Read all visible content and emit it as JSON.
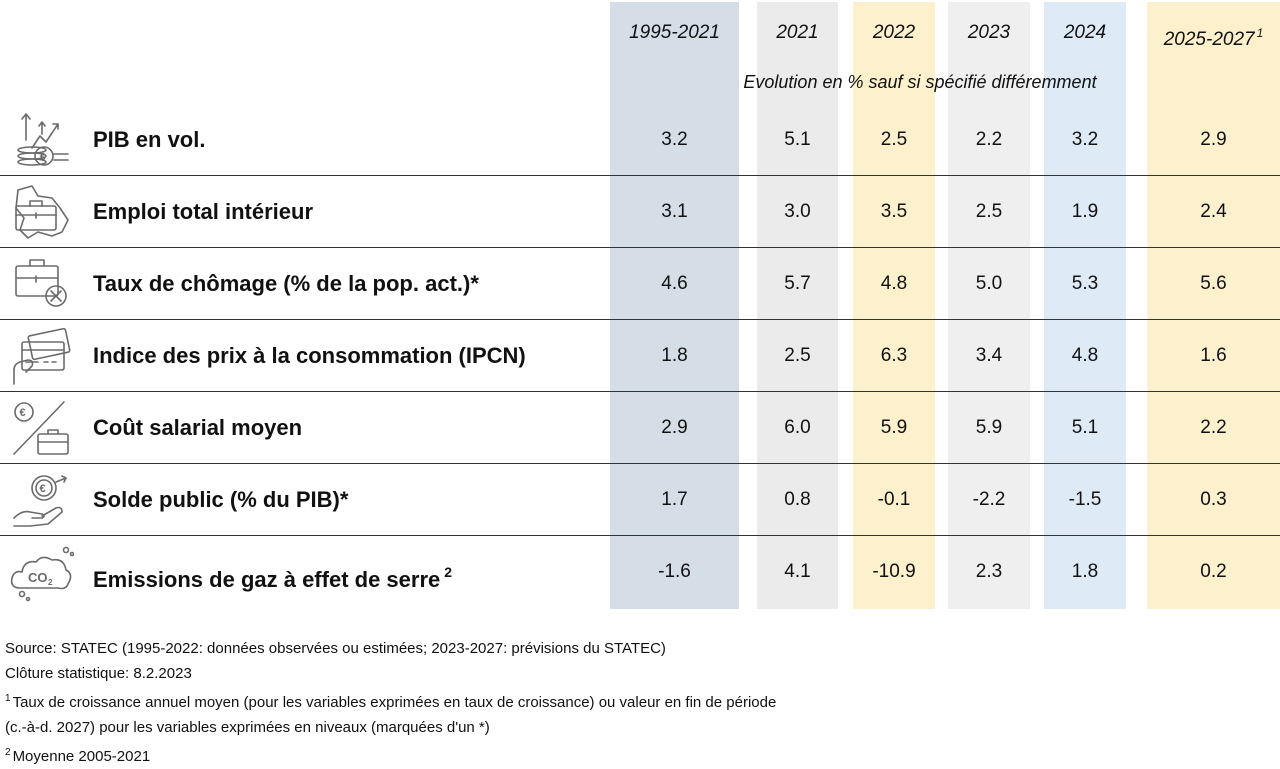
{
  "chart_data": {
    "type": "table",
    "unit_note": "Evolution en % sauf si spécifié différemment",
    "columns": [
      {
        "label": "1995-2021",
        "sup": "",
        "bg": "#d5dde6"
      },
      {
        "label": "2021",
        "sup": "",
        "bg": "#ebebeb"
      },
      {
        "label": "2022",
        "sup": "",
        "bg": "#fcf1cc"
      },
      {
        "label": "2023",
        "sup": "",
        "bg": "#efefef"
      },
      {
        "label": "2024",
        "sup": "",
        "bg": "#deebf7"
      },
      {
        "label": "2025-2027",
        "sup": "1",
        "bg": "#fcf1cc"
      }
    ],
    "rows": [
      {
        "label": "PIB en vol.",
        "sup": "",
        "icon": "gdp-growth-icon",
        "values": [
          "3.2",
          "5.1",
          "2.5",
          "2.2",
          "3.2",
          "2.9"
        ]
      },
      {
        "label": "Emploi total intérieur",
        "sup": "",
        "icon": "briefcase-map-icon",
        "values": [
          "3.1",
          "3.0",
          "3.5",
          "2.5",
          "1.9",
          "2.4"
        ]
      },
      {
        "label": "Taux de chômage (% de la pop. act.)*",
        "sup": "",
        "icon": "unemployment-icon",
        "values": [
          "4.6",
          "5.7",
          "4.8",
          "5.0",
          "5.3",
          "5.6"
        ]
      },
      {
        "label": "Indice des prix à la consommation (IPCN)",
        "sup": "",
        "icon": "credit-card-icon",
        "values": [
          "1.8",
          "2.5",
          "6.3",
          "3.4",
          "4.8",
          "1.6"
        ]
      },
      {
        "label": "Coût salarial moyen",
        "sup": "",
        "icon": "euro-briefcase-icon",
        "values": [
          "2.9",
          "6.0",
          "5.9",
          "5.9",
          "5.1",
          "2.2"
        ]
      },
      {
        "label": "Solde public (% du PIB)*",
        "sup": "",
        "icon": "euro-hand-icon",
        "values": [
          "1.7",
          "0.8",
          "-0.1",
          "-2.2",
          "-1.5",
          "0.3"
        ]
      },
      {
        "label": "Emissions de gaz à effet de serre",
        "sup": "2",
        "icon": "co2-cloud-icon",
        "values": [
          "-1.6",
          "4.1",
          "-10.9",
          "2.3",
          "1.8",
          "0.2"
        ]
      }
    ]
  },
  "icon_text": {
    "euro": "€",
    "co2": "CO",
    "co2_sub": "2"
  },
  "footer": {
    "source": "Source: STATEC (1995-2022: données observées ou estimées; 2023-2027: prévisions du STATEC)",
    "cloture": "Clôture statistique: 8.2.2023",
    "note1_sup": "1",
    "note1_line1": "Taux de croissance annuel moyen (pour les variables exprimées en taux de croissance) ou valeur en fin de période",
    "note1_line2": "(c.-à-d. 2027) pour les variables exprimées en niveaux (marquées d'un *)",
    "note2_sup": "2",
    "note2": "Moyenne 2005-2021"
  }
}
